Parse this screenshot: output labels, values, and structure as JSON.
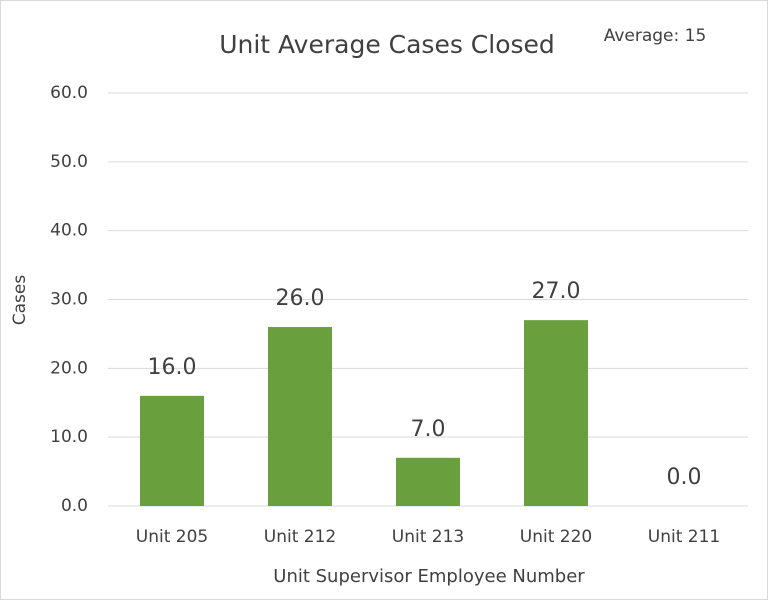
{
  "chart_data": {
    "type": "bar",
    "title": "Unit Average Cases Closed",
    "annotation": "Average: 15",
    "x_label": "Unit Supervisor Employee Number",
    "y_label": "Cases",
    "categories": [
      "Unit 205",
      "Unit 212",
      "Unit 213",
      "Unit 220",
      "Unit 211"
    ],
    "values": [
      16,
      26,
      7,
      27,
      0
    ],
    "value_labels": [
      "16.0",
      "26.0",
      "7.0",
      "27.0",
      "0.0"
    ],
    "color": "#6a9f3e",
    "ylim": [
      0,
      60
    ],
    "yticks": [
      {
        "value": 0,
        "label": "0.0"
      },
      {
        "value": 10,
        "label": "10.0"
      },
      {
        "value": 20,
        "label": "20.0"
      },
      {
        "value": 30,
        "label": "30.0"
      },
      {
        "value": 40,
        "label": "40.0"
      },
      {
        "value": 50,
        "label": "50.0"
      },
      {
        "value": 60,
        "label": "60.0"
      }
    ],
    "grid": true
  }
}
